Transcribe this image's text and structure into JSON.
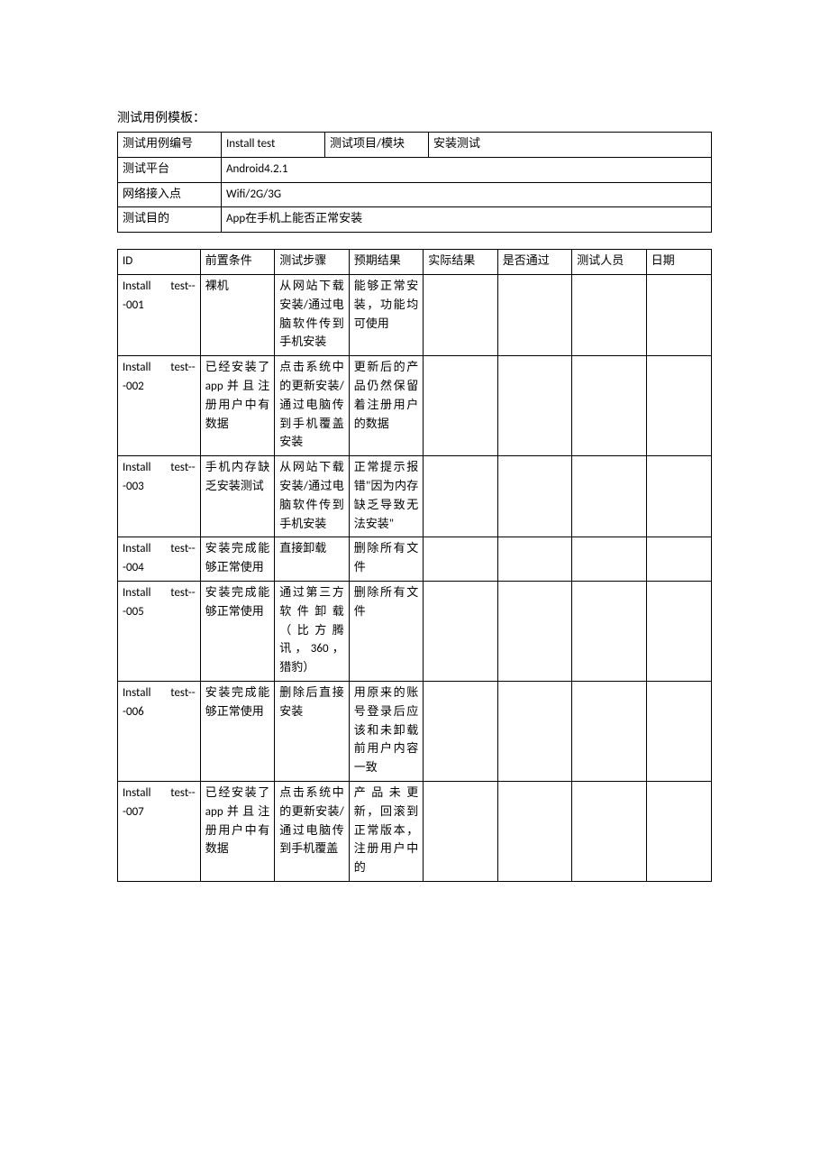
{
  "title": "测试用例模板：",
  "header": {
    "rows": [
      {
        "label": "测试用例编号",
        "value1": "Install test",
        "label2": "测试项目/模块",
        "value2": "安装测试"
      },
      {
        "label": "测试平台",
        "value": "Android4.2.1"
      },
      {
        "label": "网络接入点",
        "value": "Wifi/2G/3G"
      },
      {
        "label": "测试目的",
        "value": "App在手机上能否正常安装"
      }
    ]
  },
  "table": {
    "columns": [
      "ID",
      "前置条件",
      "测试步骤",
      "预期结果",
      "实际结果",
      "是否通过",
      "测试人员",
      "日期"
    ],
    "rows": [
      {
        "id": "Install test---001",
        "precondition": "裸机",
        "steps": "从网站下载安装/通过电脑软件传到手机安装",
        "expected": "能够正常安装，功能均可使用",
        "actual": "",
        "pass": "",
        "tester": "",
        "date": ""
      },
      {
        "id": "Install test---002",
        "precondition": "已经安装了 app并且注册用户中有数据",
        "steps": "点击系统中的更新安装/通过电脑传到手机覆盖安装",
        "expected": "更新后的产品仍然保留着注册用户的数据",
        "actual": "",
        "pass": "",
        "tester": "",
        "date": ""
      },
      {
        "id": "Install test---003",
        "precondition": "手机内存缺乏安装测试",
        "steps": "从网站下载安装/通过电脑软件传到手机安装",
        "expected": "正常提示报错\"因为内存缺乏导致无法安装\"",
        "actual": "",
        "pass": "",
        "tester": "",
        "date": ""
      },
      {
        "id": "Install test---004",
        "precondition": "安装完成能够正常使用",
        "steps": "直接卸载",
        "expected": "删除所有文件",
        "actual": "",
        "pass": "",
        "tester": "",
        "date": ""
      },
      {
        "id": "Install test---005",
        "precondition": "安装完成能够正常使用",
        "steps": "通过第三方软件卸载（比方腾讯，360，猎豹）",
        "expected": "删除所有文件",
        "actual": "",
        "pass": "",
        "tester": "",
        "date": ""
      },
      {
        "id": "Install test---006",
        "precondition": "安装完成能够正常使用",
        "steps": "删除后直接安装",
        "expected": "用原来的账号登录后应该和未卸载前用户内容一致",
        "actual": "",
        "pass": "",
        "tester": "",
        "date": ""
      },
      {
        "id": "Install test---007",
        "precondition": "已经安装了 app并且注册用户中有数据",
        "steps": "点击系统中的更新安装/通过电脑传到手机覆盖",
        "expected": "产品未更新，回滚到正常版本，注册用户中的",
        "actual": "",
        "pass": "",
        "tester": "",
        "date": ""
      }
    ]
  }
}
